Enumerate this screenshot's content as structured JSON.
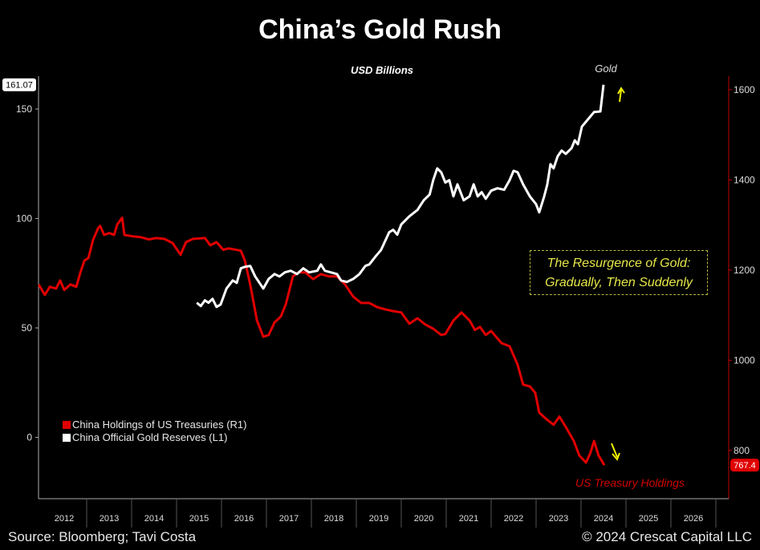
{
  "chart_data": {
    "type": "line",
    "title": "China’s Gold Rush",
    "subtitle": "USD Billions",
    "x_ticks": [
      "2012",
      "2013",
      "2014",
      "2015",
      "2016",
      "2017",
      "2018",
      "2019",
      "2020",
      "2021",
      "2022",
      "2023",
      "2024",
      "2025",
      "2026"
    ],
    "xlim": [
      2012,
      2027
    ],
    "left_axis": {
      "ticks": [
        0,
        50,
        100,
        150
      ],
      "ylim": [
        -28,
        165
      ],
      "last_value_label": "161.07"
    },
    "right_axis": {
      "ticks": [
        800,
        1000,
        1200,
        1400,
        1600
      ],
      "ylim": [
        693,
        1630
      ],
      "last_value_label": "767.4"
    },
    "series": [
      {
        "name": "China Holdings of US Treasuries (R1)",
        "axis": "right",
        "color": "#e00000",
        "points": [
          [
            2011.93,
            1168
          ],
          [
            2012.07,
            1145
          ],
          [
            2012.18,
            1163
          ],
          [
            2012.32,
            1159
          ],
          [
            2012.41,
            1177
          ],
          [
            2012.5,
            1156
          ],
          [
            2012.64,
            1168
          ],
          [
            2012.77,
            1163
          ],
          [
            2012.86,
            1195
          ],
          [
            2012.95,
            1221
          ],
          [
            2013.04,
            1227
          ],
          [
            2013.14,
            1266
          ],
          [
            2013.25,
            1292
          ],
          [
            2013.3,
            1298
          ],
          [
            2013.39,
            1278
          ],
          [
            2013.5,
            1282
          ],
          [
            2013.61,
            1278
          ],
          [
            2013.68,
            1301
          ],
          [
            2013.79,
            1316
          ],
          [
            2013.84,
            1278
          ],
          [
            2014.02,
            1275
          ],
          [
            2014.2,
            1273
          ],
          [
            2014.38,
            1268
          ],
          [
            2014.55,
            1271
          ],
          [
            2014.73,
            1269
          ],
          [
            2014.91,
            1260
          ],
          [
            2015.09,
            1234
          ],
          [
            2015.21,
            1262
          ],
          [
            2015.36,
            1269
          ],
          [
            2015.63,
            1271
          ],
          [
            2015.75,
            1255
          ],
          [
            2015.89,
            1262
          ],
          [
            2016.04,
            1245
          ],
          [
            2016.16,
            1248
          ],
          [
            2016.43,
            1243
          ],
          [
            2016.52,
            1221
          ],
          [
            2016.64,
            1168
          ],
          [
            2016.79,
            1088
          ],
          [
            2016.93,
            1052
          ],
          [
            2017.05,
            1056
          ],
          [
            2017.18,
            1084
          ],
          [
            2017.32,
            1097
          ],
          [
            2017.43,
            1124
          ],
          [
            2017.59,
            1186
          ],
          [
            2017.71,
            1195
          ],
          [
            2017.86,
            1195
          ],
          [
            2018.04,
            1180
          ],
          [
            2018.21,
            1191
          ],
          [
            2018.39,
            1186
          ],
          [
            2018.57,
            1186
          ],
          [
            2018.75,
            1168
          ],
          [
            2018.93,
            1141
          ],
          [
            2019.11,
            1127
          ],
          [
            2019.29,
            1127
          ],
          [
            2019.46,
            1118
          ],
          [
            2019.64,
            1113
          ],
          [
            2019.82,
            1109
          ],
          [
            2020.0,
            1106
          ],
          [
            2020.18,
            1081
          ],
          [
            2020.36,
            1093
          ],
          [
            2020.54,
            1079
          ],
          [
            2020.71,
            1070
          ],
          [
            2020.89,
            1056
          ],
          [
            2020.98,
            1058
          ],
          [
            2021.16,
            1088
          ],
          [
            2021.34,
            1106
          ],
          [
            2021.52,
            1088
          ],
          [
            2021.64,
            1067
          ],
          [
            2021.75,
            1074
          ],
          [
            2021.88,
            1056
          ],
          [
            2022.0,
            1065
          ],
          [
            2022.23,
            1038
          ],
          [
            2022.41,
            1031
          ],
          [
            2022.59,
            990
          ],
          [
            2022.71,
            946
          ],
          [
            2022.86,
            942
          ],
          [
            2022.98,
            928
          ],
          [
            2023.07,
            884
          ],
          [
            2023.21,
            871
          ],
          [
            2023.39,
            857
          ],
          [
            2023.52,
            875
          ],
          [
            2023.66,
            852
          ],
          [
            2023.84,
            821
          ],
          [
            2023.96,
            789
          ],
          [
            2024.11,
            773
          ],
          [
            2024.21,
            795
          ],
          [
            2024.29,
            821
          ],
          [
            2024.39,
            789
          ],
          [
            2024.52,
            767.4
          ]
        ]
      },
      {
        "name": "China Official Gold Reserves (L1)",
        "axis": "left",
        "color": "#ffffff",
        "points": [
          [
            2015.45,
            61.5
          ],
          [
            2015.54,
            60.0
          ],
          [
            2015.63,
            62.6
          ],
          [
            2015.71,
            61.5
          ],
          [
            2015.8,
            63.3
          ],
          [
            2015.89,
            59.6
          ],
          [
            2015.98,
            60.7
          ],
          [
            2016.11,
            68.0
          ],
          [
            2016.25,
            71.7
          ],
          [
            2016.34,
            70.6
          ],
          [
            2016.43,
            77.2
          ],
          [
            2016.52,
            77.9
          ],
          [
            2016.64,
            78.3
          ],
          [
            2016.75,
            73.5
          ],
          [
            2016.93,
            68.0
          ],
          [
            2017.05,
            72.4
          ],
          [
            2017.18,
            74.6
          ],
          [
            2017.29,
            73.5
          ],
          [
            2017.41,
            75.4
          ],
          [
            2017.54,
            76.1
          ],
          [
            2017.68,
            74.6
          ],
          [
            2017.82,
            77.2
          ],
          [
            2017.95,
            75.4
          ],
          [
            2018.13,
            76.1
          ],
          [
            2018.21,
            79.0
          ],
          [
            2018.3,
            76.1
          ],
          [
            2018.43,
            75.4
          ],
          [
            2018.57,
            74.6
          ],
          [
            2018.66,
            71.7
          ],
          [
            2018.79,
            71.0
          ],
          [
            2018.93,
            72.4
          ],
          [
            2019.07,
            74.6
          ],
          [
            2019.2,
            78.3
          ],
          [
            2019.29,
            79.0
          ],
          [
            2019.43,
            82.7
          ],
          [
            2019.55,
            85.6
          ],
          [
            2019.73,
            93.7
          ],
          [
            2019.82,
            94.8
          ],
          [
            2019.91,
            92.6
          ],
          [
            2020.0,
            97.3
          ],
          [
            2020.18,
            101.0
          ],
          [
            2020.36,
            103.9
          ],
          [
            2020.5,
            108.3
          ],
          [
            2020.63,
            110.9
          ],
          [
            2020.71,
            117.5
          ],
          [
            2020.8,
            122.9
          ],
          [
            2020.89,
            121.1
          ],
          [
            2020.98,
            116.4
          ],
          [
            2021.07,
            117.5
          ],
          [
            2021.16,
            110.1
          ],
          [
            2021.25,
            115.6
          ],
          [
            2021.39,
            108.3
          ],
          [
            2021.52,
            110.1
          ],
          [
            2021.61,
            115.6
          ],
          [
            2021.7,
            110.1
          ],
          [
            2021.79,
            112.0
          ],
          [
            2021.88,
            109.0
          ],
          [
            2022.0,
            112.7
          ],
          [
            2022.14,
            113.8
          ],
          [
            2022.29,
            113.1
          ],
          [
            2022.41,
            117.5
          ],
          [
            2022.5,
            121.8
          ],
          [
            2022.59,
            121.1
          ],
          [
            2022.71,
            115.6
          ],
          [
            2022.86,
            110.1
          ],
          [
            2023.0,
            106.5
          ],
          [
            2023.07,
            102.8
          ],
          [
            2023.18,
            110.1
          ],
          [
            2023.25,
            115.6
          ],
          [
            2023.32,
            124.8
          ],
          [
            2023.39,
            122.9
          ],
          [
            2023.48,
            128.4
          ],
          [
            2023.57,
            131.0
          ],
          [
            2023.66,
            129.5
          ],
          [
            2023.79,
            132.1
          ],
          [
            2023.86,
            135.7
          ],
          [
            2023.93,
            133.9
          ],
          [
            2024.02,
            142.0
          ],
          [
            2024.14,
            144.9
          ],
          [
            2024.29,
            148.6
          ],
          [
            2024.43,
            148.9
          ],
          [
            2024.5,
            161.07
          ]
        ]
      }
    ],
    "annotations": {
      "gold_label": "Gold",
      "treasury_label": "US Treasury Holdings",
      "callout_line1": "The Resurgence of Gold:",
      "callout_line2": "Gradually, Then Suddenly"
    },
    "legend": {
      "placement": "bottom-left"
    }
  },
  "footer": {
    "source": "Source: Bloomberg; Tavi Costa",
    "copyright": "© 2024 Crescat Capital LLC"
  },
  "colors": {
    "treasury": "#e00000",
    "gold": "#ffffff",
    "accent": "#e6e64a",
    "arrow": "#f0f000"
  }
}
